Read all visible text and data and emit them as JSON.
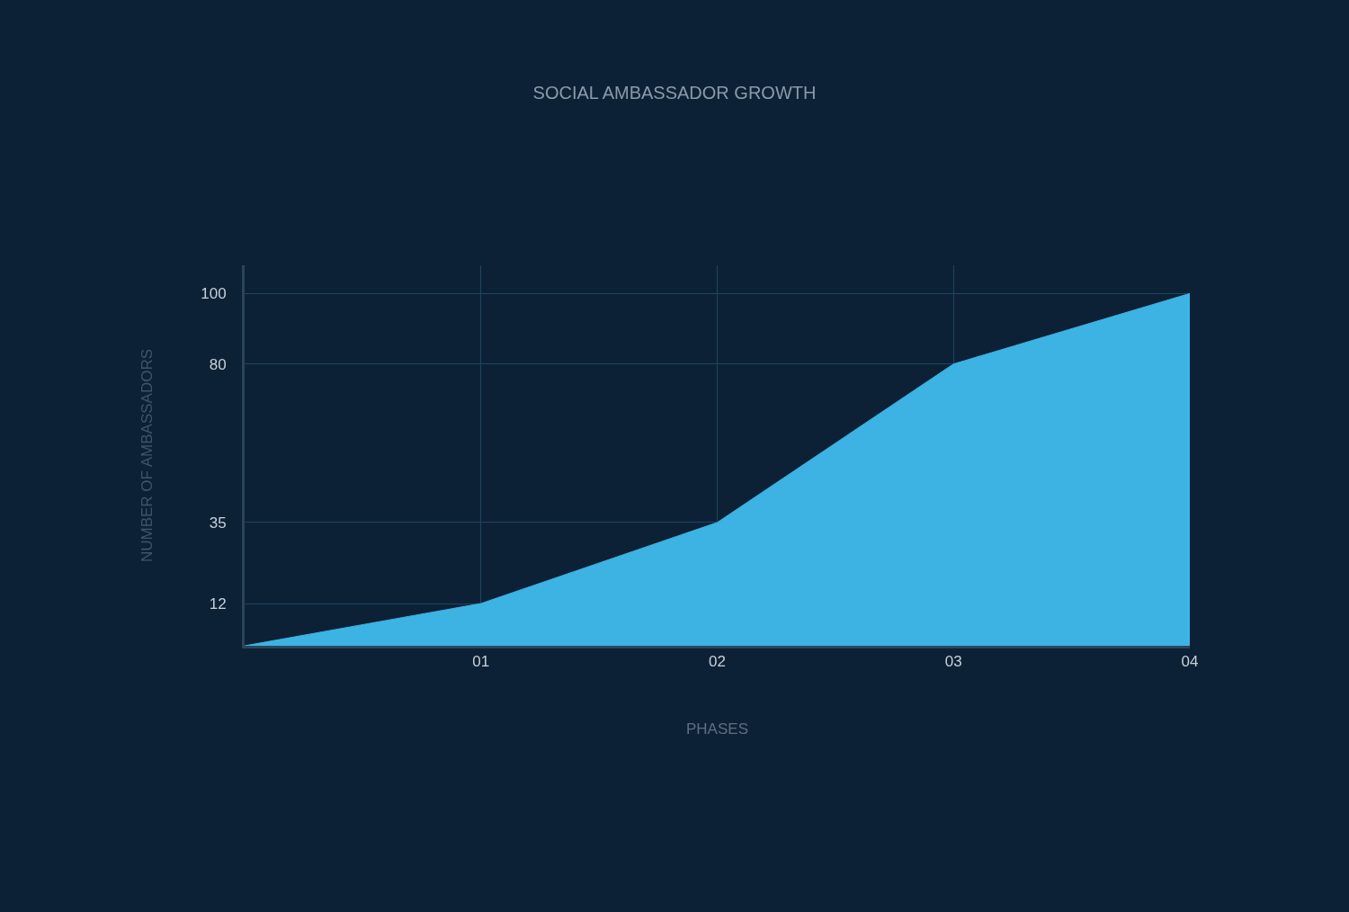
{
  "chart_data": {
    "type": "area",
    "title": "SOCIAL AMBASSADOR GROWTH",
    "xlabel": "PHASES",
    "ylabel": "NUMBER OF AMBASSADORS",
    "categories": [
      null,
      "01",
      "02",
      "03",
      "04"
    ],
    "values": [
      0,
      12,
      35,
      80,
      100
    ],
    "color": "#3db3e3",
    "ylim": [
      0,
      108
    ],
    "yticks": [
      12,
      35,
      80,
      100
    ],
    "grid": true
  }
}
